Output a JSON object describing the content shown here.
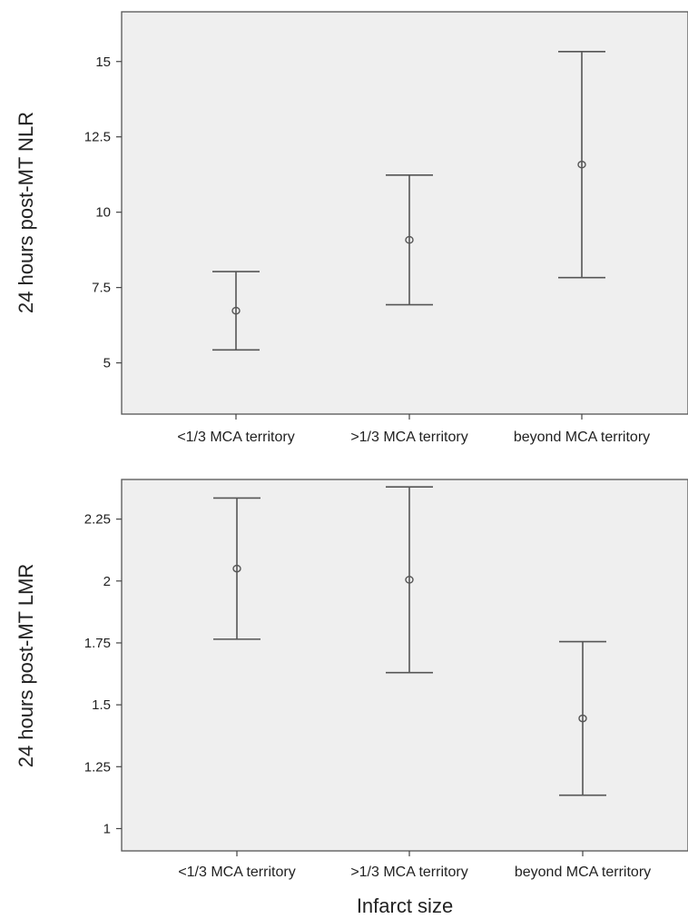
{
  "chart_data": [
    {
      "type": "errorbar",
      "title": "",
      "xlabel": "",
      "ylabel": "24 hours post-MT NLR",
      "categories": [
        "<1/3 MCA territory",
        ">1/3 MCA territory",
        "beyond MCA territory"
      ],
      "means": [
        6.73,
        9.08,
        11.58
      ],
      "lower": [
        5.43,
        6.93,
        7.83
      ],
      "upper": [
        8.03,
        11.23,
        15.33
      ],
      "yticks": [
        "5",
        "7.5",
        "10",
        "12.5",
        "15"
      ],
      "ytick_values": [
        5,
        7.5,
        10,
        12.5,
        15
      ],
      "ylim": [
        3.3,
        16.65
      ],
      "grid": false
    },
    {
      "type": "errorbar",
      "title": "",
      "xlabel": "Infarct size",
      "ylabel": "24 hours post-MT LMR",
      "categories": [
        "<1/3 MCA territory",
        ">1/3 MCA territory",
        "beyond MCA territory"
      ],
      "means": [
        2.05,
        2.005,
        1.445
      ],
      "lower": [
        1.765,
        1.63,
        1.135
      ],
      "upper": [
        2.335,
        2.38,
        1.755
      ],
      "yticks": [
        "1",
        "1.25",
        "1.5",
        "1.75",
        "2",
        "2.25"
      ],
      "ytick_values": [
        1,
        1.25,
        1.5,
        1.75,
        2,
        2.25
      ],
      "ylim": [
        0.91,
        2.41
      ],
      "grid": false
    }
  ]
}
